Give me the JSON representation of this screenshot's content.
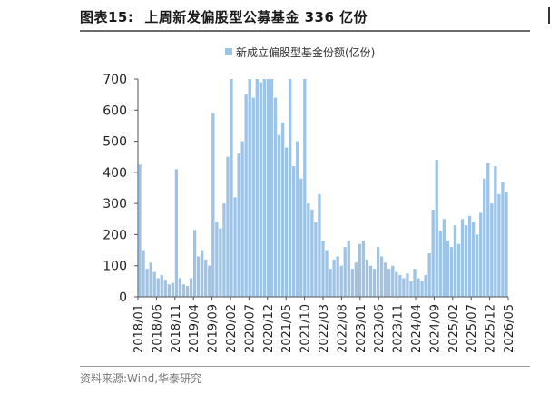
{
  "figure": {
    "number_label": "图表15:",
    "title": "上周新发偏股型公募基金 336 亿份"
  },
  "source_note": "资料来源:Wind,华泰研究",
  "colors": {
    "bar": "#9dc3e6",
    "axis": "#555555",
    "rule": "#6a6a6a"
  },
  "chart_data": {
    "type": "bar",
    "title": "",
    "xlabel": "",
    "ylabel": "",
    "ylim": [
      0,
      700
    ],
    "yticks": [
      0,
      100,
      200,
      300,
      400,
      500,
      600,
      700
    ],
    "grid": false,
    "legend_position": "top-center",
    "series": [
      {
        "name": "新成立偏股型基金份额(亿份)",
        "x": [
          "2018/01",
          "2018/02",
          "2018/03",
          "2018/04",
          "2018/05",
          "2018/06",
          "2018/07",
          "2018/08",
          "2018/09",
          "2018/10",
          "2018/11",
          "2018/12",
          "2019/01",
          "2019/02",
          "2019/03",
          "2019/04",
          "2019/05",
          "2019/06",
          "2019/07",
          "2019/08",
          "2019/09",
          "2019/10",
          "2019/11",
          "2019/12",
          "2020/01",
          "2020/02",
          "2020/03",
          "2020/04",
          "2020/05",
          "2020/06",
          "2020/07",
          "2020/08",
          "2020/09",
          "2020/10",
          "2020/11",
          "2020/12",
          "2021/01",
          "2021/02",
          "2021/03",
          "2021/04",
          "2021/05",
          "2021/06",
          "2021/07",
          "2021/08",
          "2021/09",
          "2021/10",
          "2021/11",
          "2021/12",
          "2022/01",
          "2022/02",
          "2022/03",
          "2022/04",
          "2022/05",
          "2022/06",
          "2022/07",
          "2022/08",
          "2022/09",
          "2022/10",
          "2022/11",
          "2022/12",
          "2023/01",
          "2023/02",
          "2023/03",
          "2023/04",
          "2023/05",
          "2023/06",
          "2023/07",
          "2023/08",
          "2023/09",
          "2023/10",
          "2023/11",
          "2023/12",
          "2024/01",
          "2024/02",
          "2024/03",
          "2024/04",
          "2024/05",
          "2024/06",
          "2024/07",
          "2024/08",
          "2024/09",
          "2024/10",
          "2024/11",
          "2024/12",
          "2025/01",
          "2025/02",
          "2025/03",
          "2025/04",
          "2025/05",
          "2025/06",
          "2025/07",
          "2025/08",
          "2025/09",
          "2025/10",
          "2025/11",
          "2025/12",
          "2026/01",
          "2026/02",
          "2026/03",
          "2026/04",
          "2026/05"
        ],
        "values": [
          425,
          150,
          90,
          110,
          80,
          60,
          70,
          55,
          40,
          45,
          410,
          60,
          40,
          35,
          60,
          215,
          130,
          150,
          120,
          100,
          590,
          240,
          220,
          300,
          450,
          700,
          320,
          460,
          500,
          650,
          700,
          640,
          700,
          690,
          700,
          700,
          700,
          640,
          520,
          560,
          480,
          700,
          420,
          500,
          380,
          700,
          300,
          280,
          240,
          330,
          180,
          150,
          90,
          120,
          130,
          100,
          160,
          180,
          90,
          110,
          170,
          180,
          120,
          100,
          90,
          160,
          130,
          110,
          90,
          100,
          80,
          70,
          60,
          75,
          50,
          90,
          60,
          50,
          70,
          140,
          280,
          440,
          210,
          250,
          180,
          160,
          230,
          170,
          250,
          230,
          260,
          240,
          200,
          270,
          380,
          430,
          300,
          420,
          330,
          370,
          336
        ]
      }
    ],
    "x_tick_labels": [
      "2018/01",
      "2018/06",
      "2018/11",
      "2019/04",
      "2019/09",
      "2020/02",
      "2020/07",
      "2020/12",
      "2021/05",
      "2021/10",
      "2022/03",
      "2022/08",
      "2023/01",
      "2023/06",
      "2023/11",
      "2024/04",
      "2024/09",
      "2025/02",
      "2025/07",
      "2025/12",
      "2026/05"
    ]
  }
}
